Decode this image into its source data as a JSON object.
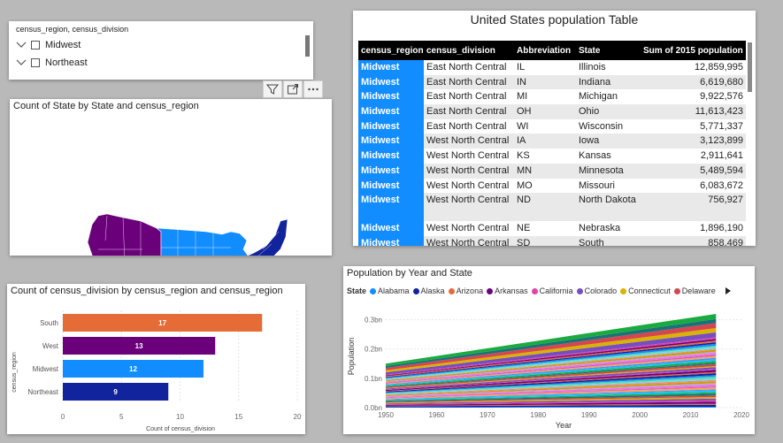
{
  "slicer": {
    "title": "census_region, census_division",
    "items": [
      {
        "label": "Midwest"
      },
      {
        "label": "Northeast"
      }
    ]
  },
  "map": {
    "title": "Count of State by State and census_region",
    "colors": {
      "West": "#6b007b",
      "Midwest": "#118dff",
      "South": "#e66c37",
      "Northeast": "#12239e"
    }
  },
  "table": {
    "title": "United States population Table",
    "columns": [
      "census_region",
      "census_division",
      "Abbreviation",
      "State",
      "Sum of 2015 population"
    ],
    "rows": [
      [
        "Midwest",
        "East North Central",
        "IL",
        "Illinois",
        "12,859,995"
      ],
      [
        "Midwest",
        "East North Central",
        "IN",
        "Indiana",
        "6,619,680"
      ],
      [
        "Midwest",
        "East North Central",
        "MI",
        "Michigan",
        "9,922,576"
      ],
      [
        "Midwest",
        "East North Central",
        "OH",
        "Ohio",
        "11,613,423"
      ],
      [
        "Midwest",
        "East North Central",
        "WI",
        "Wisconsin",
        "5,771,337"
      ],
      [
        "Midwest",
        "West North Central",
        "IA",
        "Iowa",
        "3,123,899"
      ],
      [
        "Midwest",
        "West North Central",
        "KS",
        "Kansas",
        "2,911,641"
      ],
      [
        "Midwest",
        "West North Central",
        "MN",
        "Minnesota",
        "5,489,594"
      ],
      [
        "Midwest",
        "West North Central",
        "MO",
        "Missouri",
        "6,083,672"
      ],
      [
        "Midwest",
        "West North Central",
        "ND",
        "North Dakota",
        "756,927"
      ],
      [
        "Midwest",
        "West North Central",
        "NE",
        "Nebraska",
        "1,896,190"
      ],
      [
        "Midwest",
        "West North Central",
        "SD",
        "South",
        "858,469"
      ]
    ]
  },
  "chart_data": [
    {
      "type": "bar",
      "orientation": "horizontal",
      "title": "Count of census_division by census_region and census_region",
      "xlabel": "Count of census_division",
      "ylabel": "census_region",
      "categories": [
        "South",
        "West",
        "Midwest",
        "Northeast"
      ],
      "values": [
        17,
        13,
        12,
        9
      ],
      "colors": [
        "#e66c37",
        "#6b007b",
        "#118dff",
        "#12239e"
      ],
      "xlim": [
        0,
        20
      ],
      "xticks": [
        "0",
        "5",
        "10",
        "15",
        "20"
      ]
    },
    {
      "type": "area",
      "stacked": true,
      "title": "Population by Year and State",
      "xlabel": "Year",
      "ylabel": "Population",
      "legend_title": "State",
      "legend": [
        {
          "name": "Alabama",
          "color": "#118dff"
        },
        {
          "name": "Alaska",
          "color": "#12239e"
        },
        {
          "name": "Arizona",
          "color": "#e66c37"
        },
        {
          "name": "Arkansas",
          "color": "#6b007b"
        },
        {
          "name": "California",
          "color": "#e044a7"
        },
        {
          "name": "Colorado",
          "color": "#744ec2"
        },
        {
          "name": "Connecticut",
          "color": "#d9b300"
        },
        {
          "name": "Delaware",
          "color": "#d64550"
        }
      ],
      "xlim": [
        1950,
        2020
      ],
      "xticks": [
        "1950",
        "1960",
        "1970",
        "1980",
        "1990",
        "2000",
        "2010",
        "2020"
      ],
      "ylim": [
        0,
        0.35
      ],
      "yticks": [
        "0.0bn",
        "0.1bn",
        "0.2bn",
        "0.3bn"
      ],
      "total_start": [
        1950,
        0.15
      ],
      "total_end": [
        2015,
        0.32
      ]
    }
  ]
}
